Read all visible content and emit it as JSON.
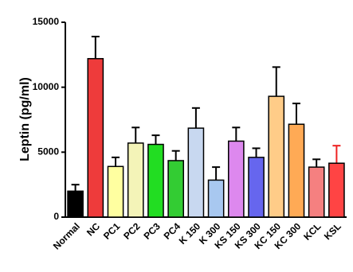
{
  "chart_data": {
    "type": "bar",
    "y_label": "Leptin (pg/ml)",
    "categories": [
      "Normal",
      "NC",
      "PC1",
      "PC2",
      "PC3",
      "PC4",
      "K 150",
      "K 300",
      "KS 150",
      "KS 300",
      "KC 150",
      "KC 300",
      "KCL",
      "KSL"
    ],
    "values": [
      2000,
      12200,
      3900,
      5700,
      5600,
      4350,
      6850,
      2850,
      5850,
      4600,
      9300,
      7150,
      3850,
      4150
    ],
    "errors": [
      500,
      1700,
      700,
      1200,
      700,
      750,
      1550,
      1000,
      1050,
      700,
      2250,
      1600,
      600,
      1350
    ],
    "colors": [
      "#000000",
      "#ee3b3b",
      "#ffffa0",
      "#f4f4b8",
      "#22dd22",
      "#33cc33",
      "#c8d8f0",
      "#a8c8f0",
      "#dd88ee",
      "#6666ee",
      "#ffcc88",
      "#ffaa55",
      "#f58080",
      "#ff4444"
    ],
    "error_colors": [
      "#000000",
      "#000000",
      "#000000",
      "#000000",
      "#000000",
      "#000000",
      "#000000",
      "#000000",
      "#000000",
      "#000000",
      "#000000",
      "#000000",
      "#000000",
      "#ee2222"
    ],
    "ylim": [
      0,
      15000
    ],
    "yticks": [
      0,
      5000,
      10000,
      15000
    ],
    "grid": false
  }
}
